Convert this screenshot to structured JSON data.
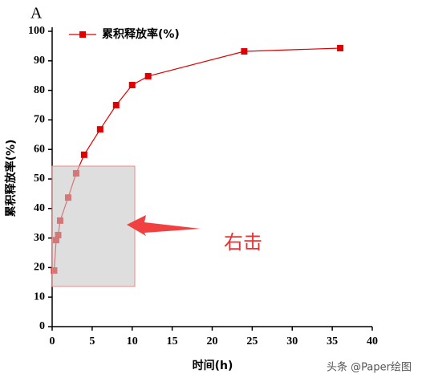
{
  "chart_data": {
    "type": "line",
    "panel_label": "A",
    "x_label": "时间(h)",
    "y_label": "累积释放率(%)",
    "x": [
      0.25,
      0.5,
      0.75,
      1,
      2,
      3,
      4,
      6,
      8,
      10,
      12,
      24,
      36
    ],
    "series": [
      {
        "name": "累积释放率(%)",
        "color": "#e00000",
        "values": [
          19,
          29.3,
          31,
          35.9,
          43.7,
          51.9,
          58.2,
          66.8,
          75,
          81.8,
          84.8,
          93.2,
          94.3
        ]
      }
    ],
    "xlim": [
      0,
      40
    ],
    "ylim": [
      0,
      100
    ],
    "xticks": [
      0,
      5,
      10,
      15,
      20,
      25,
      30,
      35,
      40
    ],
    "yticks": [
      0,
      10,
      20,
      30,
      40,
      50,
      60,
      70,
      80,
      90,
      100
    ],
    "legend": "upper-left",
    "annotation": "右击",
    "watermark": "头条 @Paper绘图"
  }
}
